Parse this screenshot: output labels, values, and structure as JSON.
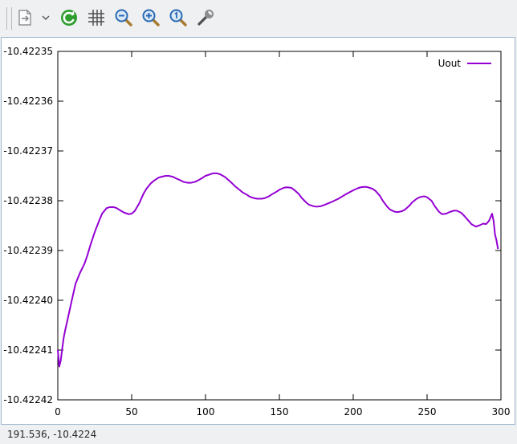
{
  "toolbar": {
    "buttons": [
      {
        "name": "export-icon"
      },
      {
        "name": "chevron-down-icon"
      },
      {
        "name": "refresh-icon"
      },
      {
        "name": "grid-icon"
      },
      {
        "name": "zoom-out-icon"
      },
      {
        "name": "zoom-in-icon"
      },
      {
        "name": "zoom-reset-icon"
      },
      {
        "name": "settings-wrench-icon"
      }
    ]
  },
  "status": {
    "coordinates": "191.536, -10.4224"
  },
  "colors": {
    "series": "#9400d3",
    "accent": "#2e9e2e",
    "frame": "#9fb7cf"
  },
  "chart_data": {
    "type": "line",
    "title": "",
    "xlabel": "",
    "ylabel": "",
    "grid": false,
    "legend_position": "top-right",
    "xlim": [
      0,
      300
    ],
    "ylim": [
      -10.42242,
      -10.42235
    ],
    "x_ticks": [
      "0",
      "50",
      "100",
      "150",
      "200",
      "250",
      "300"
    ],
    "y_ticks": [
      "-10.42235",
      "-10.42236",
      "-10.42237",
      "-10.42238",
      "-10.42239",
      "-10.42240",
      "-10.42241",
      "-10.42242"
    ],
    "series": [
      {
        "name": "Uout",
        "color": "#9400d3",
        "x": [
          0,
          1,
          2,
          3,
          4,
          5,
          6,
          8,
          10,
          12,
          15,
          18,
          20,
          22,
          25,
          28,
          30,
          33,
          35,
          38,
          40,
          42,
          45,
          48,
          50,
          52,
          55,
          58,
          60,
          63,
          65,
          68,
          70,
          73,
          75,
          78,
          80,
          83,
          85,
          88,
          90,
          93,
          95,
          98,
          100,
          103,
          105,
          108,
          110,
          113,
          115,
          118,
          120,
          123,
          125,
          128,
          130,
          133,
          135,
          138,
          140,
          143,
          145,
          148,
          150,
          153,
          155,
          158,
          160,
          163,
          165,
          168,
          170,
          173,
          175,
          178,
          180,
          185,
          190,
          195,
          200,
          203,
          205,
          208,
          210,
          213,
          215,
          218,
          220,
          223,
          225,
          228,
          230,
          233,
          235,
          238,
          240,
          243,
          245,
          248,
          250,
          253,
          255,
          258,
          260,
          263,
          265,
          268,
          270,
          273,
          275,
          278,
          280,
          283,
          285,
          288,
          290,
          292,
          294,
          295,
          296,
          297,
          298
        ],
        "y": [
          -10.42241,
          -10.4224133,
          -10.4224121,
          -10.4224097,
          -10.4224075,
          -10.422406,
          -10.4224047,
          -10.422402,
          -10.4223993,
          -10.4223967,
          -10.4223945,
          -10.4223927,
          -10.422391,
          -10.422389,
          -10.4223863,
          -10.422384,
          -10.4223826,
          -10.4223815,
          -10.4223813,
          -10.4223813,
          -10.4223815,
          -10.4223819,
          -10.4223824,
          -10.4223827,
          -10.4223826,
          -10.4223821,
          -10.4223806,
          -10.4223786,
          -10.4223776,
          -10.4223765,
          -10.422376,
          -10.4223754,
          -10.4223752,
          -10.422375,
          -10.422375,
          -10.4223752,
          -10.4223755,
          -10.4223759,
          -10.4223762,
          -10.4223764,
          -10.4223764,
          -10.4223762,
          -10.4223759,
          -10.4223754,
          -10.422375,
          -10.4223747,
          -10.4223745,
          -10.4223745,
          -10.4223747,
          -10.4223752,
          -10.4223757,
          -10.4223765,
          -10.4223771,
          -10.4223778,
          -10.4223783,
          -10.4223788,
          -10.4223792,
          -10.4223795,
          -10.4223796,
          -10.4223796,
          -10.4223795,
          -10.4223791,
          -10.4223787,
          -10.4223782,
          -10.4223778,
          -10.4223774,
          -10.4223773,
          -10.4223774,
          -10.4223778,
          -10.4223786,
          -10.4223794,
          -10.4223803,
          -10.4223808,
          -10.4223811,
          -10.4223812,
          -10.4223811,
          -10.4223809,
          -10.4223803,
          -10.4223796,
          -10.4223787,
          -10.4223779,
          -10.4223775,
          -10.4223773,
          -10.4223772,
          -10.4223773,
          -10.4223776,
          -10.422378,
          -10.422379,
          -10.42238,
          -10.4223812,
          -10.4223818,
          -10.4223822,
          -10.4223823,
          -10.4223821,
          -10.4223818,
          -10.422381,
          -10.4223803,
          -10.4223796,
          -10.4223793,
          -10.4223791,
          -10.4223793,
          -10.42238,
          -10.422381,
          -10.4223822,
          -10.4223827,
          -10.4223826,
          -10.4223823,
          -10.422382,
          -10.422382,
          -10.4223824,
          -10.422383,
          -10.422384,
          -10.4223847,
          -10.4223852,
          -10.422385,
          -10.4223846,
          -10.4223847,
          -10.422384,
          -10.4223826,
          -10.422384,
          -10.4223868,
          -10.422388,
          -10.4223897
        ]
      }
    ]
  }
}
